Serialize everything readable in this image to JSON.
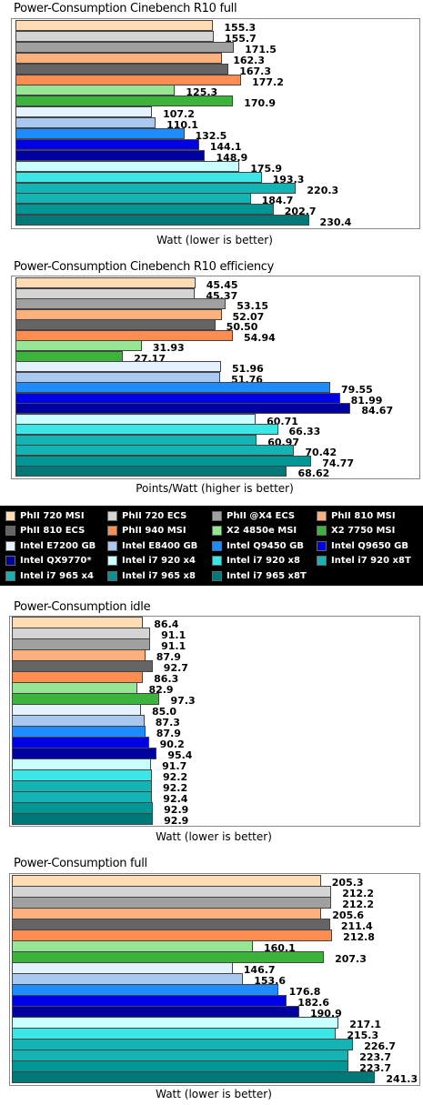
{
  "colors": [
    "#ffdcb4",
    "#d4d4d4",
    "#a0a0a0",
    "#ffb07c",
    "#646464",
    "#ff8c50",
    "#96e696",
    "#3cb43c",
    "#e4f2ff",
    "#a8c8f0",
    "#1e8cff",
    "#0000e6",
    "#0000a0",
    "#c8ffff",
    "#3ce6e6",
    "#14b4b4",
    "#009696",
    "#007878"
  ],
  "legend": [
    "PhII 720 MSI",
    "PhII 720 ECS",
    "PhII @X4 ECS",
    "PhII 810 MSI",
    "PhII 810 ECS",
    "PhII 940 MSI",
    "X2 4850e MSI",
    "X2 7750 MSI",
    "Intel E7200 GB",
    "Intel E8400 GB",
    "Intel Q9450 GB",
    "Intel Q9650 GB",
    "Intel QX9770*",
    "Intel i7 920 x4",
    "Intel i7 920 x8",
    "Intel i7 920 x8T",
    "Intel i7 965 x4",
    "Intel i7 965 x8",
    "Intel i7 965 x8T"
  ],
  "legend_colors": [
    0,
    1,
    2,
    3,
    4,
    5,
    6,
    7,
    8,
    9,
    10,
    11,
    12,
    13,
    14,
    15,
    15,
    16,
    17
  ],
  "chart_data": [
    {
      "type": "bar",
      "title": "Power-Consumption Cinebench R10 full",
      "xlabel": "Watt (lower is better)",
      "xlim": [
        0,
        240
      ],
      "values": [
        155.3,
        155.7,
        171.5,
        162.3,
        167.3,
        177.2,
        125.3,
        170.9,
        107.2,
        110.1,
        132.5,
        144.1,
        148.9,
        175.9,
        193.3,
        220.3,
        184.7,
        202.7,
        230.4
      ],
      "labels": [
        "155.3",
        "155.7",
        "171.5",
        "162.3",
        "167.3",
        "177.2",
        "125.3",
        "170.9",
        "107.2",
        "110.1",
        "132.5",
        "144.1",
        "148.9",
        "175.9",
        "193.3",
        "220.3",
        "184.7",
        "202.7",
        "230.4"
      ],
      "color_index": [
        0,
        1,
        2,
        3,
        4,
        5,
        6,
        7,
        8,
        9,
        10,
        11,
        12,
        13,
        14,
        15,
        15,
        16,
        17
      ]
    },
    {
      "type": "bar",
      "title": "Power-Consumption Cinebench R10 efficiency",
      "xlabel": "Points/Watt (higher is better)",
      "xlim": [
        0,
        90
      ],
      "values": [
        45.45,
        45.37,
        53.15,
        52.07,
        50.5,
        54.94,
        31.93,
        27.17,
        51.96,
        51.76,
        79.55,
        81.99,
        84.67,
        60.71,
        66.33,
        60.97,
        70.42,
        74.77,
        68.62
      ],
      "labels": [
        "45.45",
        "45.37",
        "53.15",
        "52.07",
        "50.50",
        "54.94",
        "31.93",
        "27.17",
        "51.96",
        "51.76",
        "79.55",
        "81.99",
        "84.67",
        "60.71",
        "66.33",
        "60.97",
        "70.42",
        "74.77",
        "68.62"
      ],
      "color_index": [
        0,
        1,
        2,
        3,
        4,
        5,
        6,
        7,
        8,
        9,
        10,
        11,
        12,
        13,
        14,
        15,
        15,
        16,
        17
      ]
    },
    {
      "type": "bar",
      "title": "Power-Consumption idle",
      "xlabel": "Watt (lower is better)",
      "xlim": [
        0,
        220
      ],
      "values": [
        86.4,
        91.1,
        91.1,
        87.9,
        92.7,
        86.3,
        82.9,
        97.3,
        85.0,
        87.3,
        87.9,
        90.2,
        95.4,
        91.7,
        92.2,
        92.2,
        92.4,
        92.9,
        92.9
      ],
      "labels": [
        "86.4",
        "91.1",
        "91.1",
        "87.9",
        "92.7",
        "86.3",
        "82.9",
        "97.3",
        "85.0",
        "87.3",
        "87.9",
        "90.2",
        "95.4",
        "91.7",
        "92.2",
        "92.2",
        "92.4",
        "92.9",
        "92.9"
      ],
      "color_index": [
        0,
        1,
        2,
        3,
        4,
        5,
        6,
        7,
        8,
        9,
        10,
        11,
        12,
        13,
        14,
        15,
        15,
        16,
        17
      ]
    },
    {
      "type": "bar",
      "title": "Power-Consumption full",
      "xlabel": "Watt (lower is better)",
      "xlim": [
        0,
        250
      ],
      "values": [
        205.3,
        212.2,
        212.2,
        205.6,
        211.4,
        212.8,
        160.1,
        207.3,
        146.7,
        153.6,
        176.8,
        182.6,
        190.9,
        217.1,
        215.3,
        226.7,
        223.7,
        223.7,
        241.3
      ],
      "labels": [
        "205.3",
        "212.2",
        "212.2",
        "205.6",
        "211.4",
        "212.8",
        "160.1",
        "207.3",
        "146.7",
        "153.6",
        "176.8",
        "182.6",
        "190.9",
        "217.1",
        "215.3",
        "226.7",
        "223.7",
        "223.7",
        "241.3"
      ],
      "color_index": [
        0,
        1,
        2,
        3,
        4,
        5,
        6,
        7,
        8,
        9,
        10,
        11,
        12,
        13,
        14,
        15,
        15,
        16,
        17
      ]
    }
  ]
}
